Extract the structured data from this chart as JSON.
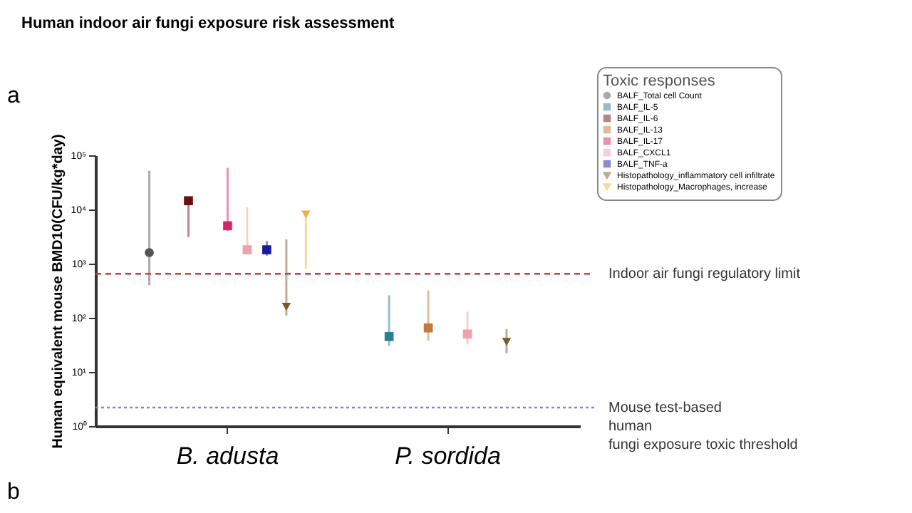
{
  "chart_data": {
    "type": "scatter",
    "title": "Human indoor air fungi exposure risk assessment",
    "ylabel": "Human equivalent mouse BMD10(CFU/kg*day)",
    "legend_title": "Toxic responses",
    "legend": "right",
    "grid": false,
    "log": "y",
    "categories": [
      "B. adusta",
      "P. sordida"
    ],
    "ylim": [
      1,
      100000
    ],
    "yticks": [
      {
        "value": 1,
        "label": "10⁰"
      },
      {
        "value": 10,
        "label": "10¹"
      },
      {
        "value": 100,
        "label": "10²"
      },
      {
        "value": 1000,
        "label": "10³"
      },
      {
        "value": 10000,
        "label": "10⁴"
      },
      {
        "value": 100000,
        "label": "10⁵"
      }
    ],
    "series": [
      {
        "name": "BALF_Total cell Count",
        "color": "#555555",
        "marker": "circle",
        "values": [
          1600,
          null
        ],
        "errors": [
          [
            400,
            52000
          ],
          null
        ]
      },
      {
        "name": "BALF_IL-5",
        "color": "#2a7f8f",
        "marker": "square",
        "values": [
          null,
          45
        ],
        "errors": [
          null,
          [
            30,
            260
          ]
        ]
      },
      {
        "name": "BALF_IL-6",
        "color": "#6b0f0f",
        "marker": "square",
        "values": [
          14500,
          null
        ],
        "errors": [
          [
            3100,
            14500
          ],
          null
        ]
      },
      {
        "name": "BALF_IL-13",
        "color": "#c07a3a",
        "marker": "square",
        "values": [
          null,
          65
        ],
        "errors": [
          null,
          [
            38,
            320
          ]
        ]
      },
      {
        "name": "BALF_IL-17",
        "color": "#d6246e",
        "marker": "square",
        "values": [
          5000,
          null
        ],
        "errors": [
          [
            4000,
            59000
          ],
          null
        ]
      },
      {
        "name": "BALF_CXCL1",
        "color": "#f0a0a8",
        "marker": "square",
        "values": [
          1800,
          50
        ],
        "errors": [
          [
            1600,
            11000
          ],
          [
            32,
            130
          ]
        ]
      },
      {
        "name": "BALF_TNF-a",
        "color": "#1a1aa0",
        "marker": "square",
        "values": [
          1800,
          null
        ],
        "errors": [
          [
            1400,
            2600
          ],
          null
        ]
      },
      {
        "name": "Histopathology_inflammatory cell infiltrate",
        "color": "#7a5a2a",
        "marker": "triangle",
        "values": [
          160,
          36
        ],
        "errors": [
          [
            110,
            2800
          ],
          [
            22,
            62
          ]
        ]
      },
      {
        "name": "Histopathology_Macrophages, increase",
        "color": "#f0b040",
        "marker": "triangle",
        "values": [
          8100,
          null
        ],
        "errors": [
          [
            810,
            8100
          ],
          null
        ]
      }
    ],
    "ref_lines": [
      {
        "axis": "y",
        "value": 650,
        "label": "Indoor air fungi regulatory limit",
        "color": "#e03030",
        "line_style": "dashed"
      },
      {
        "axis": "y",
        "value": 2.2,
        "label": "Mouse test-based\nhuman\nfungi exposure toxic threshold",
        "color": "#8080e0",
        "line_style": "dotted"
      }
    ],
    "annotations": [
      "a",
      "b"
    ]
  }
}
